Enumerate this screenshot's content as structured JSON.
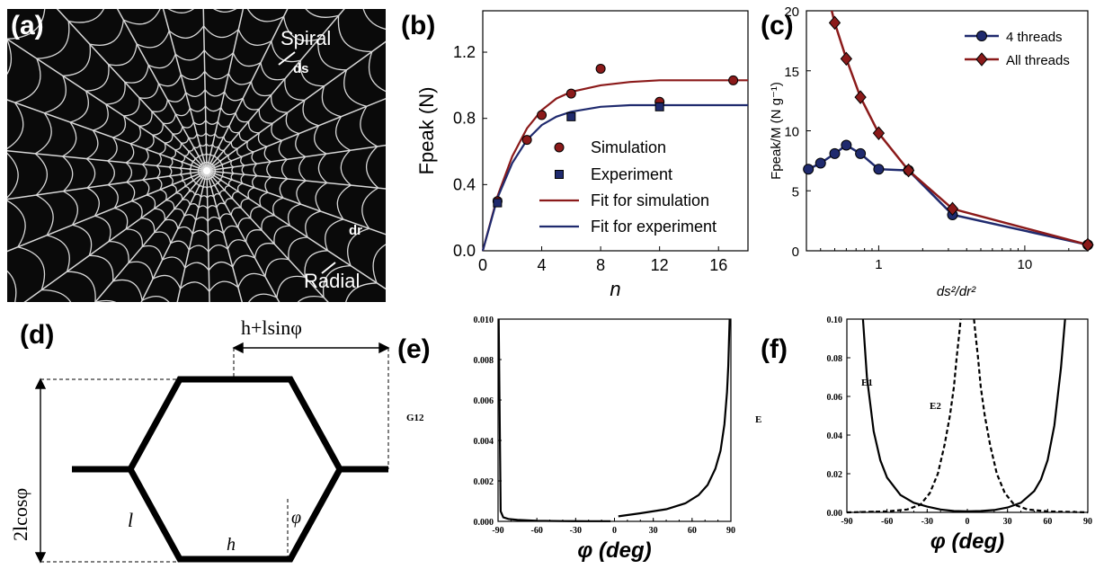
{
  "panels": {
    "a": {
      "label": "(a)",
      "spiral": "Spiral",
      "ds": "ds",
      "dr": "dr",
      "radial": "Radial"
    },
    "b": {
      "label": "(b)"
    },
    "c": {
      "label": "(c)"
    },
    "d": {
      "label": "(d)",
      "top_dim": "h+lsinφ",
      "side_dim": "2lcosφ",
      "l": "l",
      "h": "h",
      "phi": "φ"
    },
    "e": {
      "label": "(e)"
    },
    "f": {
      "label": "(f)"
    }
  },
  "colors": {
    "red": "#8b1a1a",
    "navy": "#1f2a6e",
    "web_bg": "#0a0a0a",
    "web_line": "#d8d8d8"
  },
  "chart_data": [
    {
      "id": "b",
      "type": "scatter",
      "xlabel": "n",
      "ylabel": "Fpeak (N)",
      "xlim": [
        0,
        18
      ],
      "ylim": [
        0,
        1.45
      ],
      "xticks": [
        "0",
        "4",
        "8",
        "12",
        "16"
      ],
      "yticks": [
        "0.0",
        "0.4",
        "0.8",
        "1.2"
      ],
      "series": [
        {
          "name": "Simulation",
          "kind": "points",
          "marker": "circle",
          "color": "#8b1a1a",
          "x": [
            1,
            3,
            4,
            6,
            8,
            12,
            17
          ],
          "y": [
            0.3,
            0.67,
            0.82,
            0.95,
            1.1,
            0.9,
            1.03
          ]
        },
        {
          "name": "Experiment",
          "kind": "points",
          "marker": "square",
          "color": "#1f2a6e",
          "x": [
            1,
            6,
            12
          ],
          "y": [
            0.29,
            0.81,
            0.87
          ]
        },
        {
          "name": "Fit for simulation",
          "kind": "line",
          "color": "#8b1a1a",
          "x": [
            0,
            1,
            2,
            3,
            4,
            5,
            6,
            8,
            10,
            12,
            14,
            16,
            18
          ],
          "y": [
            0,
            0.33,
            0.57,
            0.74,
            0.85,
            0.92,
            0.96,
            1.0,
            1.02,
            1.03,
            1.03,
            1.03,
            1.03
          ]
        },
        {
          "name": "Fit for experiment",
          "kind": "line",
          "color": "#1f2a6e",
          "x": [
            0,
            1,
            2,
            3,
            4,
            5,
            6,
            8,
            10,
            12,
            14,
            16,
            18
          ],
          "y": [
            0,
            0.32,
            0.53,
            0.67,
            0.76,
            0.81,
            0.84,
            0.87,
            0.88,
            0.88,
            0.88,
            0.88,
            0.88
          ]
        }
      ]
    },
    {
      "id": "c",
      "type": "line",
      "xlabel": "ds²/dr²",
      "ylabel": "Fpeak/M (N g⁻¹)",
      "xscale": "log",
      "xlim": [
        0.32,
        27
      ],
      "ylim": [
        0,
        20
      ],
      "xticks": [
        "1",
        "10"
      ],
      "yticks": [
        "0",
        "5",
        "10",
        "15",
        "20"
      ],
      "legend": "top-right",
      "series": [
        {
          "name": "4 threads",
          "marker": "circle",
          "color": "#1f2a6e",
          "x": [
            0.33,
            0.4,
            0.5,
            0.6,
            0.75,
            1.0,
            1.6,
            3.2,
            27
          ],
          "y": [
            6.8,
            7.3,
            8.1,
            8.8,
            8.1,
            6.8,
            6.7,
            3.0,
            0.5
          ]
        },
        {
          "name": "All threads",
          "marker": "diamond",
          "color": "#8b1a1a",
          "x": [
            0.5,
            0.6,
            0.75,
            1.0,
            1.6,
            3.2,
            27
          ],
          "y": [
            19.0,
            16.0,
            12.8,
            9.8,
            6.7,
            3.5,
            0.5
          ]
        }
      ]
    },
    {
      "id": "e",
      "type": "line",
      "xlabel": "φ (deg)",
      "ylabel": "G12",
      "xlim": [
        -90,
        90
      ],
      "ylim": [
        0,
        0.01
      ],
      "xticks": [
        "-90",
        "-60",
        "-30",
        "0",
        "30",
        "60",
        "90"
      ],
      "yticks": [
        "0.000",
        "0.002",
        "0.004",
        "0.006",
        "0.008",
        "0.010"
      ],
      "series": [
        {
          "style": "solid",
          "x": [
            -89.5,
            -88,
            -86,
            -82,
            -75,
            -60,
            -40,
            -20,
            -3
          ],
          "y": [
            0.01,
            0.0005,
            0.0002,
            0.00012,
            7e-05,
            3e-05,
            1.5e-05,
            1e-05,
            1e-05
          ]
        },
        {
          "style": "solid",
          "x": [
            3,
            20,
            40,
            55,
            65,
            72,
            78,
            82,
            85,
            87,
            88,
            88.5,
            89
          ],
          "y": [
            0.00025,
            0.0004,
            0.0006,
            0.0009,
            0.0013,
            0.0018,
            0.0026,
            0.0035,
            0.0048,
            0.0064,
            0.0077,
            0.0088,
            0.01
          ]
        }
      ]
    },
    {
      "id": "f",
      "type": "line",
      "xlabel": "φ (deg)",
      "ylabel": "E",
      "xlim": [
        -90,
        90
      ],
      "ylim": [
        0,
        0.1
      ],
      "xticks": [
        "-90",
        "-60",
        "-30",
        "0",
        "30",
        "60",
        "90"
      ],
      "yticks": [
        "0.00",
        "0.02",
        "0.04",
        "0.06",
        "0.08",
        "0.10"
      ],
      "series": [
        {
          "name": "E1",
          "style": "solid",
          "x": [
            -78,
            -75,
            -70,
            -65,
            -60,
            -50,
            -40,
            -30,
            -20,
            -10,
            0,
            10,
            20,
            30,
            40,
            50,
            55,
            60,
            65,
            70,
            73
          ],
          "y": [
            0.1,
            0.07,
            0.042,
            0.027,
            0.018,
            0.009,
            0.005,
            0.003,
            0.0015,
            0.0007,
            0.0005,
            0.0007,
            0.0012,
            0.0025,
            0.005,
            0.011,
            0.017,
            0.027,
            0.045,
            0.075,
            0.1
          ]
        },
        {
          "name": "E2",
          "style": "dashed",
          "x": [
            -90,
            -60,
            -45,
            -35,
            -28,
            -22,
            -17,
            -13,
            -10,
            -8,
            -6,
            -5
          ],
          "y": [
            0.0,
            0.0005,
            0.0015,
            0.004,
            0.01,
            0.02,
            0.035,
            0.05,
            0.065,
            0.08,
            0.093,
            0.1
          ]
        },
        {
          "style": "dashed",
          "x": [
            5,
            6,
            8,
            10,
            13,
            17,
            22,
            28,
            35,
            45,
            60,
            90
          ],
          "y": [
            0.1,
            0.093,
            0.08,
            0.065,
            0.05,
            0.035,
            0.02,
            0.01,
            0.004,
            0.0015,
            0.0005,
            0.0
          ]
        }
      ]
    }
  ]
}
